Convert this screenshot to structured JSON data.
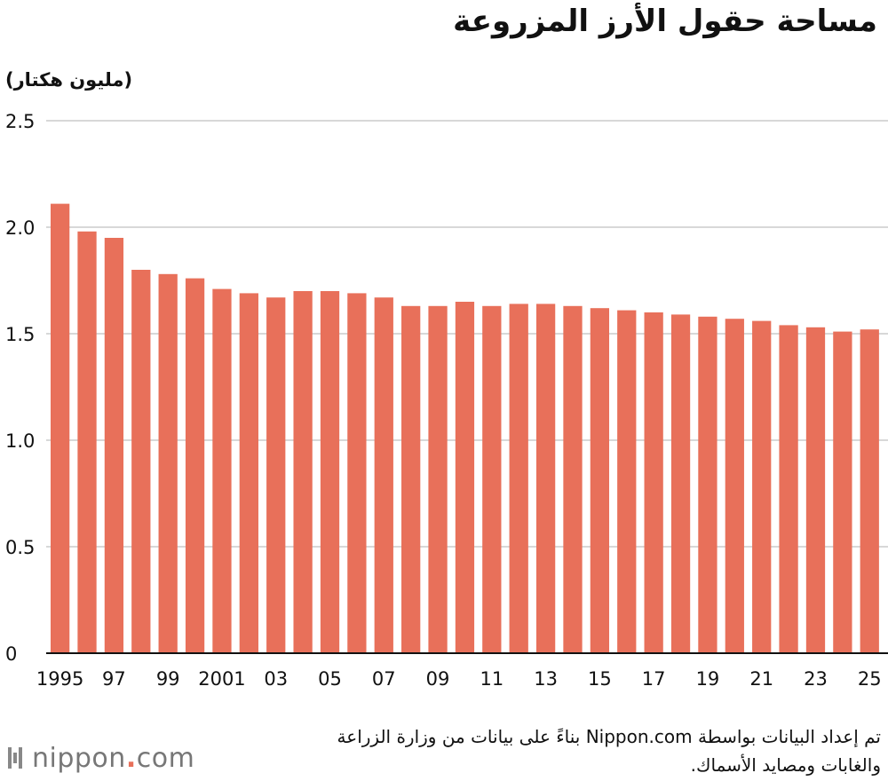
{
  "title": "مساحة حقول الأرز المزروعة",
  "unit_label": "(مليون هكتار)",
  "source_note": "تم إعداد البيانات بواسطة Nippon.com بناءً على بيانات من وزارة الزراعة والغابات ومصايد الأسماك.",
  "logo": {
    "name": "nippon",
    "dot": ".",
    "domain": "com"
  },
  "colors": {
    "bar": "#e8705a",
    "grid": "#cccccc",
    "axis": "#111111"
  },
  "chart_data": {
    "type": "bar",
    "title": "مساحة حقول الأرز المزروعة",
    "ylabel": "(مليون هكتار)",
    "xlabel": "",
    "ylim": [
      0,
      2.5
    ],
    "yticks": [
      0,
      0.5,
      1.0,
      1.5,
      2.0,
      2.5
    ],
    "ytick_labels": [
      "0",
      "0.5",
      "1.0",
      "1.5",
      "2.0",
      "2.5"
    ],
    "grid": true,
    "categories": [
      "1995",
      "1996",
      "1997",
      "1998",
      "1999",
      "2000",
      "2001",
      "2002",
      "2003",
      "2004",
      "2005",
      "2006",
      "2007",
      "2008",
      "2009",
      "2010",
      "2011",
      "2012",
      "2013",
      "2014",
      "2015",
      "2016",
      "2017",
      "2018",
      "2019",
      "2020",
      "2021",
      "2022",
      "2023",
      "2024",
      "2025"
    ],
    "category_labels": [
      "1995",
      "",
      "97",
      "",
      "99",
      "",
      "2001",
      "",
      "03",
      "",
      "05",
      "",
      "07",
      "",
      "09",
      "",
      "11",
      "",
      "13",
      "",
      "15",
      "",
      "17",
      "",
      "19",
      "",
      "21",
      "",
      "23",
      "",
      "25"
    ],
    "values": [
      2.11,
      1.98,
      1.95,
      1.8,
      1.78,
      1.76,
      1.71,
      1.69,
      1.67,
      1.7,
      1.7,
      1.69,
      1.67,
      1.63,
      1.63,
      1.65,
      1.63,
      1.64,
      1.64,
      1.63,
      1.62,
      1.61,
      1.6,
      1.59,
      1.58,
      1.57,
      1.56,
      1.54,
      1.53,
      1.51,
      1.52
    ]
  }
}
